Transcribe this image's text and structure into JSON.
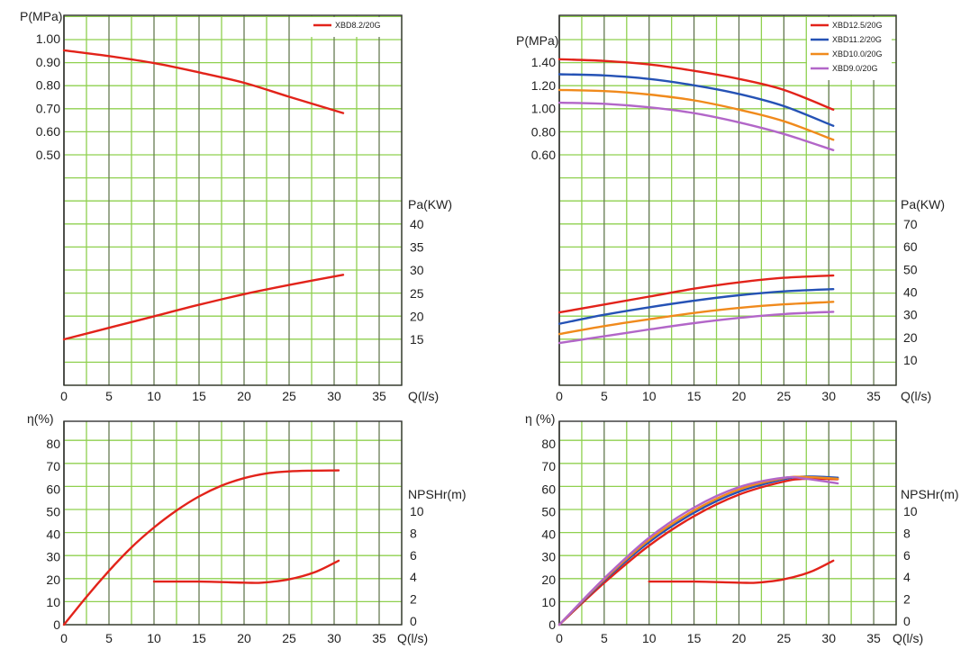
{
  "colors": {
    "grid": "#8fd04f",
    "frame": "#333333",
    "background": "#ffffff",
    "XBD12.5/20G": "#e2231a",
    "XBD11.2/20G": "#2552b5",
    "XBD10.0/20G": "#f08a1c",
    "XBD9.0/20G": "#b266c8",
    "XBD8.2/20G": "#e2231a",
    "npsh": "#e2231a"
  },
  "chart_data": [
    {
      "id": "left-top",
      "type": "line",
      "xlabel": "Q(l/s)",
      "xticks": [
        "0",
        "5",
        "10",
        "15",
        "20",
        "25",
        "30",
        "35"
      ],
      "xlim": [
        0,
        37.5
      ],
      "legend": [
        "XBD8.2/20G"
      ],
      "legend_position": "top-right",
      "grid": true,
      "axes": [
        {
          "key": "p",
          "label": "P(MPa)",
          "side": "left",
          "ticks": [
            "1.00",
            "0.90",
            "0.80",
            "0.70",
            "0.60",
            "0.50"
          ],
          "range": [
            0.5,
            1.0
          ],
          "series": [
            {
              "name": "XBD8.2/20G",
              "x": [
                0,
                5,
                10,
                15,
                20,
                25,
                31
              ],
              "y": [
                0.95,
                0.925,
                0.895,
                0.855,
                0.81,
                0.75,
                0.68
              ]
            }
          ]
        },
        {
          "key": "pa",
          "label": "Pa(KW)",
          "side": "right",
          "ticks": [
            "40",
            "35",
            "30",
            "25",
            "20",
            "15"
          ],
          "range": [
            15,
            40
          ],
          "series": [
            {
              "name": "XBD8.2/20G",
              "x": [
                0,
                5,
                10,
                15,
                20,
                25,
                31
              ],
              "y": [
                15,
                17.5,
                20,
                22.5,
                24.8,
                26.8,
                29
              ]
            }
          ]
        }
      ]
    },
    {
      "id": "right-top",
      "type": "line",
      "xlabel": "Q(l/s)",
      "xticks": [
        "0",
        "5",
        "10",
        "15",
        "20",
        "25",
        "30",
        "35"
      ],
      "xlim": [
        0,
        37.5
      ],
      "legend": [
        "XBD12.5/20G",
        "XBD11.2/20G",
        "XBD10.0/20G",
        "XBD9.0/20G"
      ],
      "legend_position": "top-right",
      "grid": true,
      "axes": [
        {
          "key": "p",
          "label": "P(MPa)",
          "side": "left",
          "ticks": [
            "1.40",
            "1.20",
            "1.00",
            "0.80",
            "0.60"
          ],
          "range": [
            0.6,
            1.4
          ],
          "series": [
            {
              "name": "XBD12.5/20G",
              "x": [
                0,
                5,
                10,
                15,
                20,
                25,
                30.5
              ],
              "y": [
                1.425,
                1.41,
                1.38,
                1.325,
                1.255,
                1.16,
                0.99
              ]
            },
            {
              "name": "XBD11.2/20G",
              "x": [
                0,
                5,
                10,
                15,
                20,
                25,
                30.5
              ],
              "y": [
                1.295,
                1.285,
                1.255,
                1.2,
                1.125,
                1.02,
                0.85
              ]
            },
            {
              "name": "XBD10.0/20G",
              "x": [
                0,
                5,
                10,
                15,
                20,
                25,
                30.5
              ],
              "y": [
                1.16,
                1.15,
                1.12,
                1.07,
                0.99,
                0.89,
                0.73
              ]
            },
            {
              "name": "XBD9.0/20G",
              "x": [
                0,
                5,
                10,
                15,
                20,
                25,
                30.5
              ],
              "y": [
                1.05,
                1.04,
                1.01,
                0.96,
                0.88,
                0.78,
                0.64
              ]
            }
          ]
        },
        {
          "key": "pa",
          "label": "Pa(KW)",
          "side": "right",
          "ticks": [
            "70",
            "60",
            "50",
            "40",
            "30",
            "20",
            "10"
          ],
          "range": [
            10,
            70
          ],
          "series": [
            {
              "name": "XBD12.5/20G",
              "x": [
                0,
                5,
                10,
                15,
                20,
                25,
                30.5
              ],
              "y": [
                31,
                34.5,
                38,
                41.5,
                44.3,
                46.3,
                47.3
              ]
            },
            {
              "name": "XBD11.2/20G",
              "x": [
                0,
                5,
                10,
                15,
                20,
                25,
                30.5
              ],
              "y": [
                26,
                30,
                33.3,
                36.2,
                38.6,
                40.3,
                41.3
              ]
            },
            {
              "name": "XBD10.0/20G",
              "x": [
                0,
                5,
                10,
                15,
                20,
                25,
                30.5
              ],
              "y": [
                21.5,
                25,
                28,
                30.8,
                33,
                34.6,
                35.7
              ]
            },
            {
              "name": "XBD9.0/20G",
              "x": [
                0,
                5,
                10,
                15,
                20,
                25,
                30.5
              ],
              "y": [
                17.5,
                20.5,
                23.5,
                26.3,
                28.6,
                30.3,
                31.3
              ]
            }
          ]
        }
      ]
    },
    {
      "id": "left-bottom",
      "type": "line",
      "xlabel": "Q(l/s)",
      "xticks": [
        "0",
        "5",
        "10",
        "15",
        "20",
        "25",
        "30",
        "35"
      ],
      "xlim": [
        0,
        37.5
      ],
      "grid": true,
      "axes": [
        {
          "key": "eta",
          "label": "η(%)",
          "side": "left",
          "ticks": [
            "80",
            "70",
            "60",
            "50",
            "40",
            "30",
            "20",
            "10",
            "0"
          ],
          "range": [
            0,
            80
          ],
          "series": [
            {
              "name": "XBD8.2/20G",
              "x": [
                0,
                2.5,
                5,
                7.5,
                10,
                12.5,
                15,
                17.5,
                20,
                22.5,
                25,
                27.5,
                30.5
              ],
              "y": [
                0,
                12.3,
                23.8,
                34.2,
                43,
                50.5,
                56.7,
                61.5,
                64.8,
                66.9,
                67.8,
                68.1,
                68.2
              ]
            }
          ]
        },
        {
          "key": "npsh",
          "label": "NPSHr(m)",
          "side": "right",
          "ticks": [
            "10",
            "8",
            "6",
            "4",
            "2",
            "0"
          ],
          "range": [
            0,
            10
          ],
          "series": [
            {
              "name": "NPSHr",
              "x": [
                10,
                15,
                20,
                22,
                25,
                28,
                30.5
              ],
              "y": [
                3.6,
                3.6,
                3.5,
                3.5,
                3.8,
                4.5,
                5.5
              ]
            }
          ]
        }
      ]
    },
    {
      "id": "right-bottom",
      "type": "line",
      "xlabel": "Q(l/s)",
      "xticks": [
        "0",
        "5",
        "10",
        "15",
        "20",
        "25",
        "30",
        "35"
      ],
      "xlim": [
        0,
        37.5
      ],
      "grid": true,
      "axes": [
        {
          "key": "eta",
          "label": "η (%)",
          "side": "left",
          "ticks": [
            "80",
            "70",
            "60",
            "50",
            "40",
            "30",
            "20",
            "10",
            "0"
          ],
          "range": [
            0,
            80
          ],
          "series": [
            {
              "name": "XBD12.5/20G",
              "x": [
                0,
                5,
                10,
                15,
                20,
                25,
                27.5,
                31
              ],
              "y": [
                0,
                18.5,
                35,
                48,
                57.5,
                63.3,
                64.5,
                64.3
              ]
            },
            {
              "name": "XBD11.2/20G",
              "x": [
                0,
                5,
                10,
                15,
                20,
                25,
                27.5,
                31
              ],
              "y": [
                0,
                19.5,
                36.5,
                49.5,
                58.8,
                64.3,
                65.5,
                65
              ]
            },
            {
              "name": "XBD10.0/20G",
              "x": [
                0,
                5,
                10,
                15,
                20,
                25,
                27.5,
                31
              ],
              "y": [
                0,
                20,
                37.5,
                50.5,
                59.8,
                64.8,
                65.3,
                64.5
              ]
            },
            {
              "name": "XBD9.0/20G",
              "x": [
                0,
                5,
                10,
                15,
                20,
                25,
                27.5,
                31
              ],
              "y": [
                0,
                20.5,
                38.5,
                51.8,
                60.8,
                65,
                64.5,
                62.5
              ]
            }
          ]
        },
        {
          "key": "npsh",
          "label": "NPSHr(m)",
          "side": "right",
          "ticks": [
            "10",
            "8",
            "6",
            "4",
            "2",
            "0"
          ],
          "range": [
            0,
            10
          ],
          "series": [
            {
              "name": "NPSHr",
              "x": [
                10,
                15,
                20,
                22,
                25,
                28,
                30.5
              ],
              "y": [
                3.6,
                3.6,
                3.5,
                3.5,
                3.8,
                4.5,
                5.5
              ]
            }
          ]
        }
      ]
    }
  ]
}
